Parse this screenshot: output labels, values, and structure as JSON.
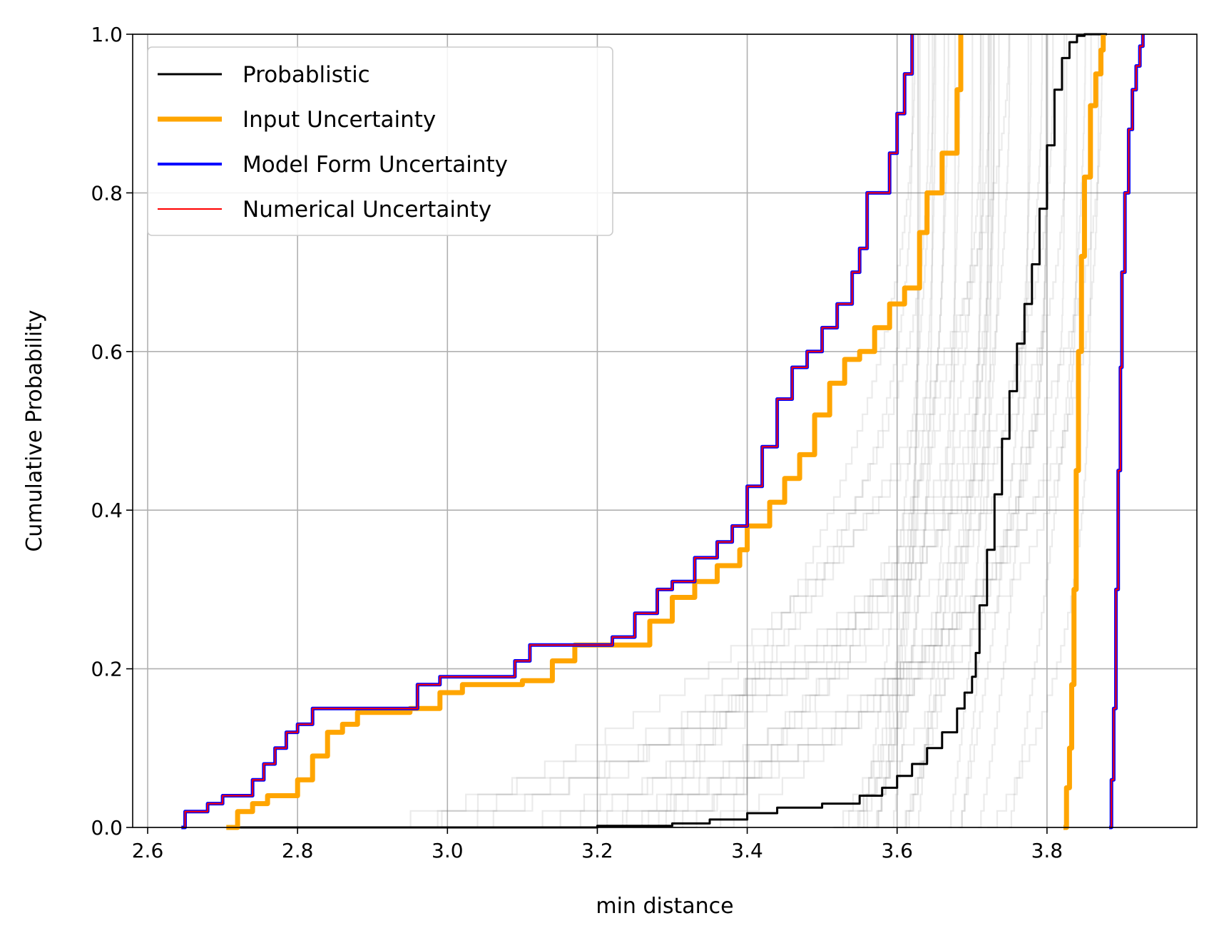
{
  "chart_data": {
    "type": "line",
    "title": "",
    "xlabel": "min distance",
    "ylabel": "Cumulative Probability",
    "xlim": [
      2.58,
      4.0
    ],
    "ylim": [
      0.0,
      1.0
    ],
    "xticks": [
      2.6,
      2.8,
      3.0,
      3.2,
      3.4,
      3.6,
      3.8
    ],
    "xtick_labels": [
      "2.6",
      "2.8",
      "3.0",
      "3.2",
      "3.4",
      "3.6",
      "3.8"
    ],
    "yticks": [
      0.0,
      0.2,
      0.4,
      0.6,
      0.8,
      1.0
    ],
    "ytick_labels": [
      "0.0",
      "0.2",
      "0.4",
      "0.6",
      "0.8",
      "1.0"
    ],
    "grid": true,
    "legend_position": "upper-left",
    "series": [
      {
        "name": "Probablistic",
        "color": "#000000",
        "x": [
          2.71,
          3.0,
          3.2,
          3.3,
          3.35,
          3.4,
          3.44,
          3.5,
          3.55,
          3.58,
          3.6,
          3.62,
          3.64,
          3.66,
          3.68,
          3.69,
          3.7,
          3.705,
          3.71,
          3.72,
          3.73,
          3.74,
          3.75,
          3.76,
          3.77,
          3.78,
          3.79,
          3.8,
          3.81,
          3.82,
          3.83,
          3.84,
          3.85,
          3.86,
          3.88
        ],
        "y": [
          0.0,
          0.0,
          0.002,
          0.005,
          0.01,
          0.018,
          0.025,
          0.03,
          0.04,
          0.05,
          0.065,
          0.08,
          0.1,
          0.12,
          0.15,
          0.17,
          0.19,
          0.22,
          0.28,
          0.35,
          0.42,
          0.49,
          0.55,
          0.61,
          0.66,
          0.71,
          0.78,
          0.86,
          0.93,
          0.97,
          0.99,
          0.998,
          1.0,
          1.0,
          1.0
        ]
      },
      {
        "name": "Input Uncertainty",
        "color": "#FFA500",
        "x": [
          2.705,
          2.72,
          2.74,
          2.76,
          2.79,
          2.8,
          2.82,
          2.84,
          2.86,
          2.88,
          2.95,
          2.99,
          3.02,
          3.06,
          3.1,
          3.14,
          3.17,
          3.2,
          3.24,
          3.27,
          3.3,
          3.33,
          3.36,
          3.39,
          3.4,
          3.43,
          3.45,
          3.47,
          3.49,
          3.51,
          3.53,
          3.55,
          3.57,
          3.59,
          3.61,
          3.63,
          3.64,
          3.66,
          3.68,
          3.685
        ],
        "y": [
          0.0,
          0.02,
          0.03,
          0.04,
          0.04,
          0.06,
          0.09,
          0.12,
          0.13,
          0.145,
          0.15,
          0.17,
          0.18,
          0.18,
          0.185,
          0.21,
          0.23,
          0.23,
          0.23,
          0.26,
          0.29,
          0.31,
          0.33,
          0.35,
          0.38,
          0.41,
          0.44,
          0.47,
          0.52,
          0.56,
          0.59,
          0.6,
          0.63,
          0.66,
          0.68,
          0.75,
          0.8,
          0.85,
          0.93,
          1.0
        ]
      },
      {
        "name": "Input Uncertainty",
        "color": "#FFA500",
        "x": [
          3.822,
          3.826,
          3.83,
          3.833,
          3.836,
          3.839,
          3.842,
          3.846,
          3.85,
          3.858,
          3.865,
          3.872,
          3.875
        ],
        "y": [
          0.0,
          0.05,
          0.1,
          0.18,
          0.3,
          0.45,
          0.6,
          0.72,
          0.82,
          0.91,
          0.95,
          0.98,
          1.0
        ]
      },
      {
        "name": "Model Form Uncertainty",
        "color": "#0000FF",
        "x": [
          2.645,
          2.65,
          2.68,
          2.7,
          2.72,
          2.74,
          2.755,
          2.77,
          2.785,
          2.8,
          2.82,
          2.84,
          2.88,
          2.94,
          2.96,
          2.99,
          3.02,
          3.05,
          3.09,
          3.11,
          3.14,
          3.18,
          3.22,
          3.25,
          3.28,
          3.3,
          3.33,
          3.36,
          3.38,
          3.4,
          3.42,
          3.44,
          3.46,
          3.48,
          3.5,
          3.52,
          3.54,
          3.55,
          3.56,
          3.58,
          3.59,
          3.6,
          3.61,
          3.62
        ],
        "y": [
          0.0,
          0.02,
          0.03,
          0.04,
          0.04,
          0.06,
          0.08,
          0.1,
          0.12,
          0.13,
          0.15,
          0.15,
          0.15,
          0.15,
          0.18,
          0.19,
          0.19,
          0.19,
          0.21,
          0.23,
          0.23,
          0.23,
          0.24,
          0.27,
          0.3,
          0.31,
          0.34,
          0.36,
          0.38,
          0.43,
          0.48,
          0.54,
          0.58,
          0.6,
          0.63,
          0.66,
          0.7,
          0.73,
          0.8,
          0.8,
          0.85,
          0.9,
          0.95,
          1.0
        ]
      },
      {
        "name": "Model Form Uncertainty",
        "color": "#0000FF",
        "x": [
          3.883,
          3.886,
          3.889,
          3.892,
          3.895,
          3.898,
          3.9,
          3.904,
          3.909,
          3.914,
          3.919,
          3.924,
          3.928
        ],
        "y": [
          0.0,
          0.06,
          0.15,
          0.3,
          0.45,
          0.58,
          0.7,
          0.8,
          0.88,
          0.93,
          0.96,
          0.985,
          1.0
        ]
      },
      {
        "name": "Numerical Uncertainty",
        "color": "#FF0000",
        "x": [
          2.645,
          2.65,
          2.68,
          2.7,
          2.72,
          2.74,
          2.755,
          2.77,
          2.785,
          2.8,
          2.82,
          2.84,
          2.88,
          2.94,
          2.96,
          2.99,
          3.02,
          3.05,
          3.09,
          3.11,
          3.14,
          3.18,
          3.22,
          3.25,
          3.28,
          3.3,
          3.33,
          3.36,
          3.38,
          3.4,
          3.42,
          3.44,
          3.46,
          3.48,
          3.5,
          3.52,
          3.54,
          3.55,
          3.56,
          3.58,
          3.59,
          3.6,
          3.61,
          3.62
        ],
        "y": [
          0.0,
          0.02,
          0.03,
          0.04,
          0.04,
          0.06,
          0.08,
          0.1,
          0.12,
          0.13,
          0.15,
          0.15,
          0.15,
          0.15,
          0.18,
          0.19,
          0.19,
          0.19,
          0.21,
          0.23,
          0.23,
          0.23,
          0.24,
          0.27,
          0.3,
          0.31,
          0.34,
          0.36,
          0.38,
          0.43,
          0.48,
          0.54,
          0.58,
          0.6,
          0.63,
          0.66,
          0.7,
          0.73,
          0.8,
          0.8,
          0.85,
          0.9,
          0.95,
          1.0
        ]
      },
      {
        "name": "Numerical Uncertainty",
        "color": "#FF0000",
        "x": [
          3.883,
          3.886,
          3.889,
          3.892,
          3.895,
          3.898,
          3.9,
          3.904,
          3.909,
          3.914,
          3.919,
          3.924,
          3.928
        ],
        "y": [
          0.0,
          0.06,
          0.15,
          0.3,
          0.45,
          0.58,
          0.7,
          0.8,
          0.88,
          0.93,
          0.96,
          0.985,
          1.0
        ]
      }
    ],
    "background_curves": {
      "color": "#808080",
      "count": 40,
      "x_start_range": [
        2.75,
        3.8
      ],
      "x_end_range": [
        3.62,
        3.88
      ]
    },
    "legend": [
      {
        "label": "Probablistic",
        "color": "#000000",
        "width": 3
      },
      {
        "label": "Input Uncertainty",
        "color": "#FFA500",
        "width": 7
      },
      {
        "label": "Model Form Uncertainty",
        "color": "#0000FF",
        "width": 4
      },
      {
        "label": "Numerical Uncertainty",
        "color": "#FF0000",
        "width": 2
      }
    ]
  }
}
